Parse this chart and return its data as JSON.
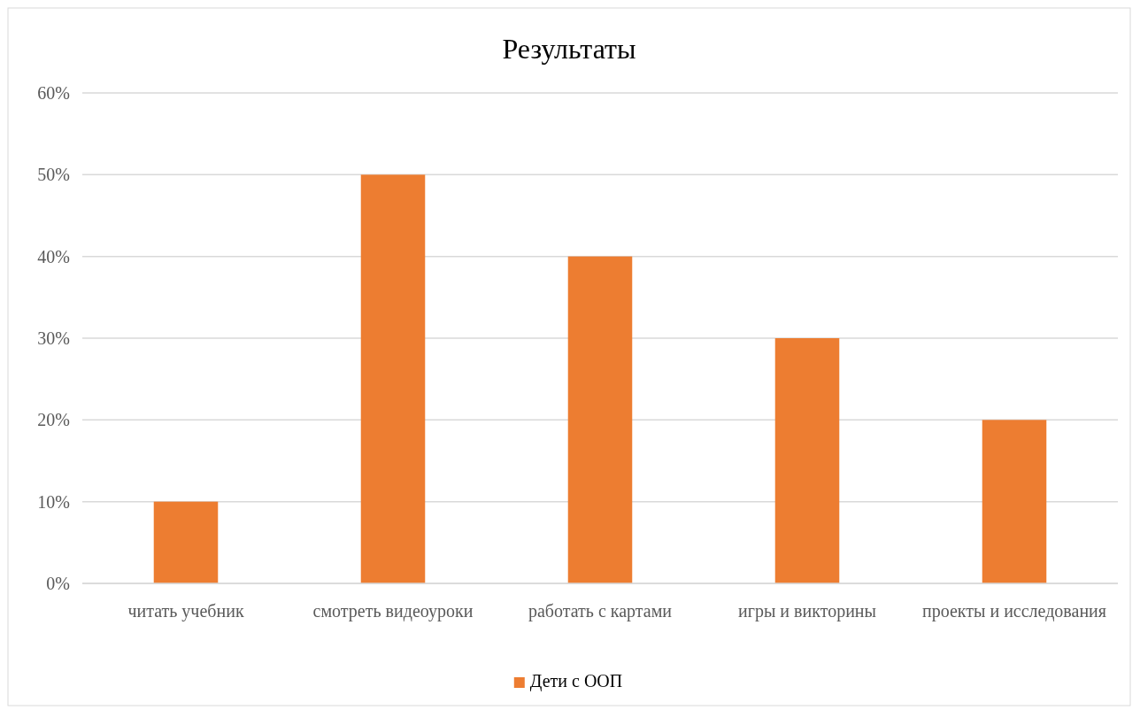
{
  "chart_data": {
    "type": "bar",
    "title": "Результаты",
    "categories": [
      "читать учебник",
      "смотреть видеоуроки",
      "работать с картами",
      "игры и викторины",
      "проекты и исследования"
    ],
    "series": [
      {
        "name": "Дети с ООП",
        "color": "#ed7d31",
        "values": [
          0.1,
          0.5,
          0.4,
          0.3,
          0.2
        ]
      }
    ],
    "ylim": [
      0,
      0.6
    ],
    "yticks": [
      {
        "value": 0,
        "label": "0%"
      },
      {
        "value": 0.1,
        "label": "10%"
      },
      {
        "value": 0.2,
        "label": "20%"
      },
      {
        "value": 0.3,
        "label": "30%"
      },
      {
        "value": 0.4,
        "label": "40%"
      },
      {
        "value": 0.5,
        "label": "50%"
      },
      {
        "value": 0.6,
        "label": "60%"
      }
    ],
    "grid": "y",
    "legend": "bottom"
  }
}
